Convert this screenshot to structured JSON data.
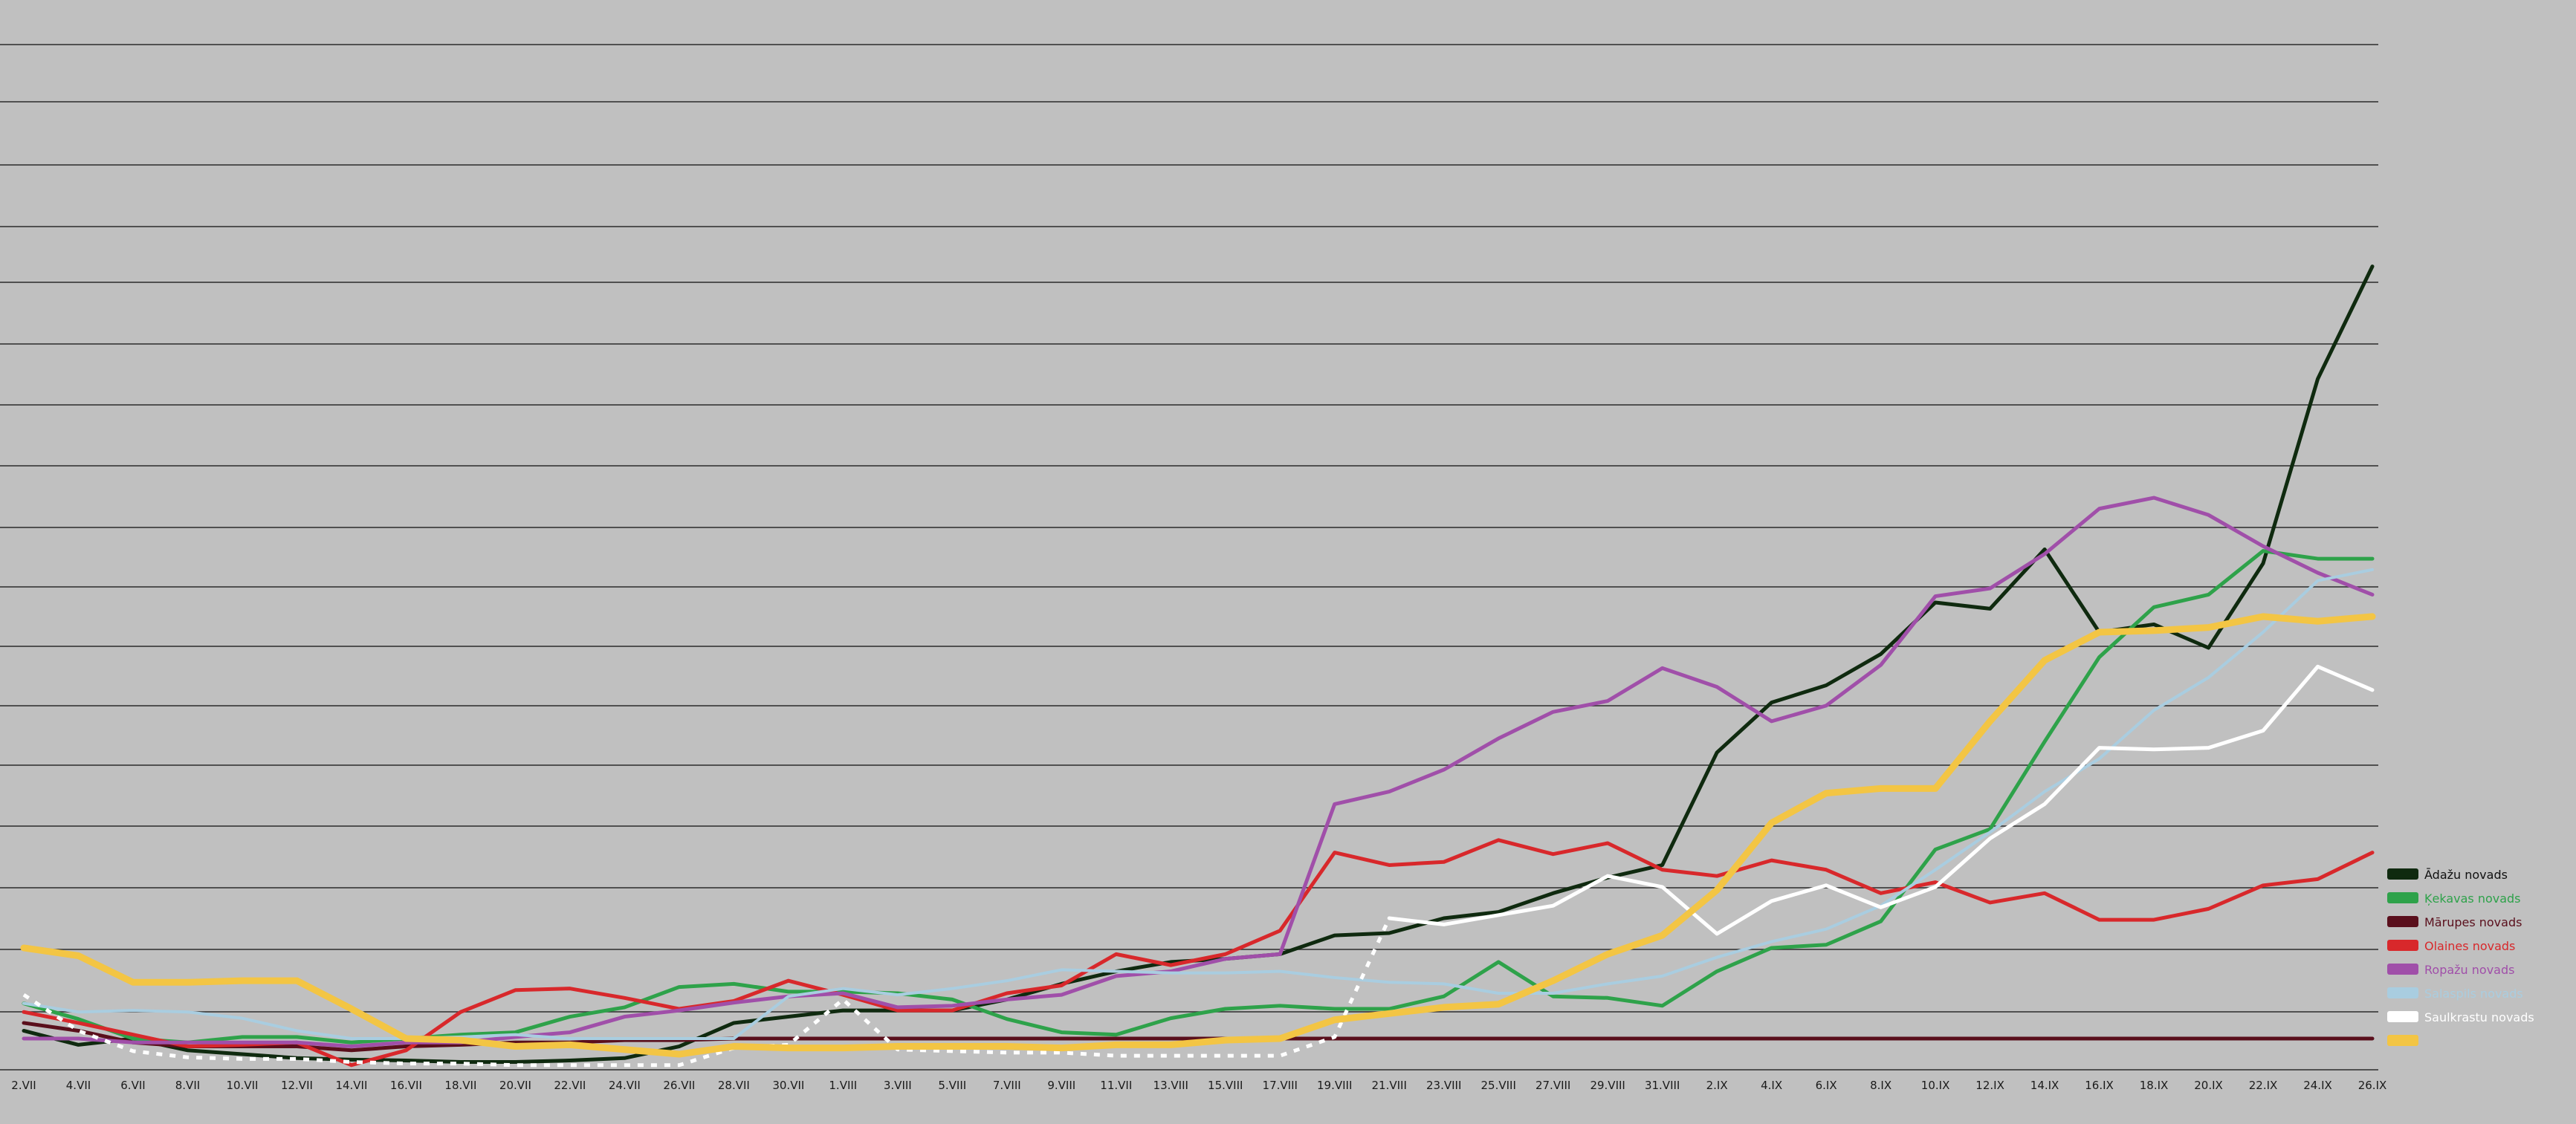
{
  "chart_data": {
    "type": "line",
    "title": "",
    "xlabel": "",
    "ylabel": "",
    "grid": true,
    "legend_position": "bottom-right",
    "ylim": [
      0,
      100
    ],
    "categories": [
      "2.VII",
      "4.VII",
      "6.VII",
      "8.VII",
      "10.VII",
      "12.VII",
      "14.VII",
      "16.VII",
      "18.VII",
      "20.VII",
      "22.VII",
      "24.VII",
      "26.VII",
      "28.VII",
      "30.VII",
      "1.VIII",
      "3.VIII",
      "5.VIII",
      "7.VIII",
      "9.VIII",
      "11.VII",
      "13.VIII",
      "15.VIII",
      "17.VIII",
      "19.VIII",
      "21.VIII",
      "23.VIII",
      "25.VIII",
      "27.VIII",
      "29.VIII",
      "31.VIII",
      "2.IX",
      "4.IX",
      "6.IX",
      "8.IX",
      "10.IX",
      "12.IX",
      "14.IX",
      "16.IX",
      "18.IX",
      "20.IX",
      "22.IX",
      "24.IX",
      "26.IX"
    ],
    "series": [
      {
        "name": "Ādažu novads",
        "color": "#0f2a0f",
        "width": 5,
        "values": [
          1,
          -0.8,
          0,
          -1.5,
          -2,
          -2.5,
          -2.7,
          -2.8,
          -3,
          -3,
          -2.8,
          -2.5,
          -1,
          2,
          2.8,
          3.6,
          3.6,
          3.6,
          5,
          7,
          8.6,
          9.8,
          10.2,
          10.8,
          13.2,
          13.5,
          15.4,
          16.2,
          18.6,
          20.6,
          22.2,
          36.6,
          43,
          45.2,
          49.2,
          55.8,
          55,
          62.6,
          52,
          53,
          50,
          60.8,
          84.4,
          98.8
        ]
      },
      {
        "name": "Ķekavas novads",
        "color": "#2ea24a",
        "width": 5,
        "values": [
          4.5,
          2.5,
          0,
          -0.5,
          0.2,
          0.2,
          -0.5,
          0,
          0.5,
          0.8,
          2.8,
          4,
          6.6,
          7,
          6,
          6,
          5.8,
          5,
          2.5,
          0.8,
          0.5,
          2.6,
          3.8,
          4.2,
          3.8,
          3.8,
          5.4,
          9.8,
          5.4,
          5.2,
          4.2,
          8.6,
          11.6,
          12,
          15,
          24.2,
          26.8,
          38,
          48.8,
          55.2,
          56.8,
          62.4,
          61.4,
          61.4
        ]
      },
      {
        "name": "Mārupes novads",
        "color": "#5a0f1c",
        "width": 5,
        "values": [
          2,
          1,
          -0.5,
          -1,
          -1,
          -1,
          -1.5,
          -1,
          -0.8,
          -0.5,
          -0.5,
          -0.2,
          -0.2,
          0,
          0,
          0,
          0,
          0,
          0,
          0,
          0,
          0,
          0,
          0,
          0,
          0,
          0,
          0,
          0,
          0,
          0,
          0,
          0,
          0,
          0,
          0,
          0,
          0,
          0,
          0,
          0,
          0,
          0,
          0
        ]
      },
      {
        "name": "Olaines novads",
        "color": "#d8282b",
        "width": 5,
        "values": [
          3.4,
          2,
          0.5,
          -1,
          -0.8,
          -0.5,
          -3.4,
          -1.5,
          3.4,
          6.2,
          6.4,
          5.2,
          3.8,
          4.8,
          7.4,
          5.6,
          3.6,
          3.6,
          5.8,
          6.8,
          10.8,
          9.4,
          10.8,
          13.8,
          23.8,
          22.2,
          22.6,
          25.4,
          23.6,
          25,
          21.6,
          20.8,
          22.8,
          21.6,
          18.6,
          20,
          17.4,
          18.6,
          15.2,
          15.2,
          16.6,
          19.6,
          20.4,
          23.8
        ]
      },
      {
        "name": "Ropažu novads",
        "color": "#a04fa9",
        "width": 5,
        "values": [
          0,
          0,
          -0.5,
          -0.5,
          -0.5,
          -0.5,
          -1,
          -0.5,
          -0.5,
          0.2,
          0.8,
          2.8,
          3.6,
          4.6,
          5.4,
          5.8,
          4,
          4.2,
          5,
          5.6,
          8,
          8.6,
          10.2,
          10.8,
          30,
          31.6,
          34.4,
          38.4,
          41.8,
          43.2,
          47.4,
          45,
          40.6,
          42.6,
          47.8,
          56.6,
          57.6,
          62,
          67.8,
          69.2,
          67,
          63,
          59.6,
          56.8
        ]
      },
      {
        "name": "Salaspils novads",
        "color": "#a9cde0",
        "width": 4,
        "values": [
          4.5,
          3.4,
          3.6,
          3.4,
          2.6,
          1,
          0,
          0,
          0.2,
          0.5,
          0,
          0,
          0,
          0,
          5.4,
          6.4,
          5.6,
          6.4,
          7.4,
          8.8,
          8.6,
          8.4,
          8.4,
          8.6,
          7.8,
          7.2,
          7,
          5.8,
          5.8,
          7,
          8,
          10.4,
          12.4,
          14,
          17,
          21.6,
          26.4,
          31.6,
          35.8,
          42,
          46.2,
          52,
          58.6,
          60
        ]
      },
      {
        "name": "Saulkrastu novads",
        "color": "#ffffff",
        "width": 5,
        "dash": "8,10",
        "dash_until": 25,
        "values": [
          5.6,
          1,
          -1.6,
          -2.4,
          -2.6,
          -2.6,
          -3,
          -3.2,
          -3.2,
          -3.4,
          -3.4,
          -3.4,
          -3.4,
          -1.2,
          -0.8,
          5,
          -1.4,
          -1.6,
          -1.8,
          -1.8,
          -2.2,
          -2.2,
          -2.2,
          -2.2,
          0.2,
          15.4,
          14.6,
          15.8,
          17,
          20.8,
          19.4,
          13.4,
          17.6,
          19.6,
          16.8,
          19.4,
          25.6,
          30,
          37.2,
          37,
          37.2,
          39.4,
          47.6,
          44.6
        ]
      },
      {
        "name": "",
        "color": "#f3c544",
        "width": 9,
        "values": [
          11.6,
          10.6,
          7.2,
          7.2,
          7.4,
          7.4,
          3.8,
          0,
          -0.2,
          -1,
          -0.8,
          -1.4,
          -2,
          -1,
          -1.2,
          -1.2,
          -1,
          -1,
          -1,
          -1.2,
          -0.8,
          -0.8,
          -0.2,
          0,
          2.4,
          3.2,
          4,
          4.4,
          7.4,
          10.8,
          13.2,
          19,
          27.6,
          31.4,
          32,
          32,
          40.6,
          48.4,
          52,
          52.2,
          52.6,
          54,
          53.4,
          54
        ]
      }
    ]
  }
}
